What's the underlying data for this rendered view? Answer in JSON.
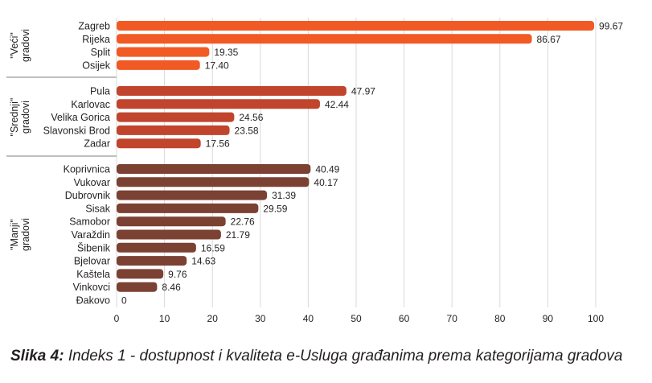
{
  "chart_data": {
    "type": "bar",
    "orientation": "horizontal",
    "xlim": [
      0,
      100
    ],
    "xticks": [
      0,
      10,
      20,
      30,
      40,
      50,
      60,
      70,
      80,
      90,
      100
    ],
    "grid": "vertical",
    "groups": [
      {
        "label_line1": "\"Veći\"",
        "label_line2": "gradovi",
        "color": "#f15a24",
        "bars": [
          {
            "category": "Zagreb",
            "value": 99.67
          },
          {
            "category": "Rijeka",
            "value": 86.67
          },
          {
            "category": "Split",
            "value": 19.35
          },
          {
            "category": "Osijek",
            "value": 17.4
          }
        ]
      },
      {
        "label_line1": "\"Srednji\"",
        "label_line2": "gradovi",
        "color": "#c1442c",
        "bars": [
          {
            "category": "Pula",
            "value": 47.97
          },
          {
            "category": "Karlovac",
            "value": 42.44
          },
          {
            "category": "Velika Gorica",
            "value": 24.56
          },
          {
            "category": "Slavonski Brod",
            "value": 23.58
          },
          {
            "category": "Zadar",
            "value": 17.56
          }
        ]
      },
      {
        "label_line1": "\"Manji\"",
        "label_line2": "gradovi",
        "color": "#7b4133",
        "bars": [
          {
            "category": "Koprivnica",
            "value": 40.49
          },
          {
            "category": "Vukovar",
            "value": 40.17
          },
          {
            "category": "Dubrovnik",
            "value": 31.39
          },
          {
            "category": "Sisak",
            "value": 29.59
          },
          {
            "category": "Samobor",
            "value": 22.76
          },
          {
            "category": "Varaždin",
            "value": 21.79
          },
          {
            "category": "Šibenik",
            "value": 16.59
          },
          {
            "category": "Bjelovar",
            "value": 14.63
          },
          {
            "category": "Kaštela",
            "value": 9.76
          },
          {
            "category": "Vinkovci",
            "value": 8.46
          },
          {
            "category": "Đakovo",
            "value": 0
          }
        ]
      }
    ]
  },
  "caption": {
    "label": "Slika 4:",
    "text": " Indeks 1 - dostupnost i kvaliteta e-Usluga građanima prema kategorijama gradova"
  }
}
